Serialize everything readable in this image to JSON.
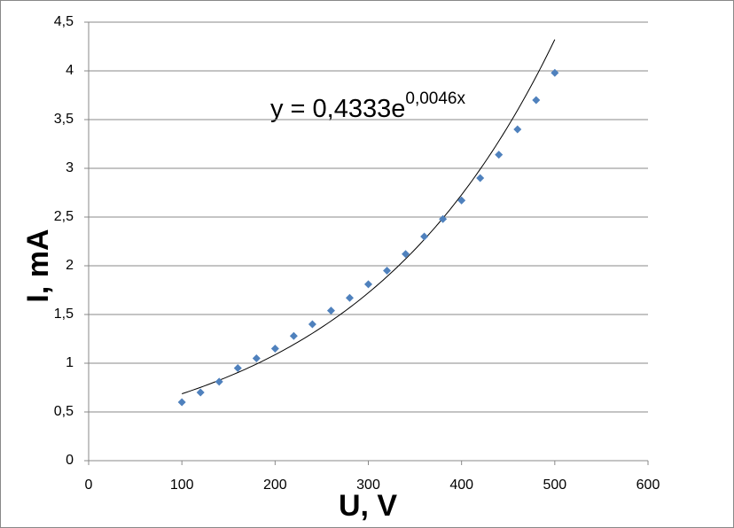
{
  "chart_data": {
    "type": "scatter",
    "x": [
      100,
      120,
      140,
      160,
      180,
      200,
      220,
      240,
      260,
      280,
      300,
      320,
      340,
      360,
      380,
      400,
      420,
      440,
      460,
      480,
      500
    ],
    "series": [
      {
        "color": "#4f81bd",
        "values": [
          0.6,
          0.7,
          0.81,
          0.95,
          1.05,
          1.15,
          1.28,
          1.4,
          1.54,
          1.67,
          1.81,
          1.95,
          2.12,
          2.3,
          2.48,
          2.67,
          2.9,
          3.14,
          3.4,
          3.7,
          3.98
        ]
      }
    ],
    "x_label": "U, V",
    "y_label": "I, mA",
    "xlim": [
      0,
      600
    ],
    "xticks": [
      0,
      100,
      200,
      300,
      400,
      500,
      600
    ],
    "ylim": [
      0,
      4.5
    ],
    "yticks": [
      0,
      {
        "value": 0.5,
        "label": "0,5"
      },
      1,
      {
        "value": 1.5,
        "label": "1,5"
      },
      2,
      {
        "value": 2.5,
        "label": "2,5"
      },
      3,
      {
        "value": 3.5,
        "label": "3,5"
      },
      4,
      {
        "value": 4.5,
        "label": "4,5"
      }
    ],
    "grid": true,
    "trendline": {
      "text": "y = 0,4333e",
      "exponent": "0,0046x",
      "a": 0.4333,
      "b": 0.0046,
      "color": "#000000"
    }
  }
}
